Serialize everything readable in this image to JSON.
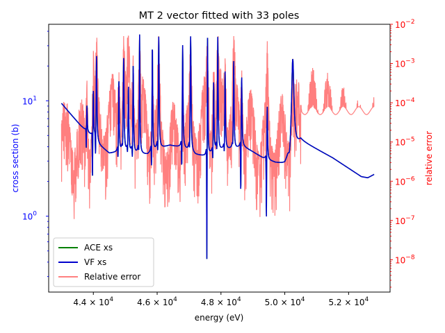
{
  "chart_data": {
    "type": "line",
    "title": "MT 2 vector fitted with 33 poles",
    "xlabel": "energy (eV)",
    "ylabel_left": "cross section (b)",
    "ylabel_right": "relative error",
    "xlim": [
      42600,
      53300
    ],
    "ylim_left": [
      0.22,
      46
    ],
    "ylim_right": [
      1.5e-09,
      0.01
    ],
    "yscale_left": "log",
    "yscale_right": "log",
    "grid": false,
    "legend_position": "lower-left",
    "x_ticks": [
      {
        "value": 44000,
        "mantissa": "4.4",
        "exp": "4"
      },
      {
        "value": 46000,
        "mantissa": "4.6",
        "exp": "4"
      },
      {
        "value": 48000,
        "mantissa": "4.8",
        "exp": "4"
      },
      {
        "value": 50000,
        "mantissa": "5.0",
        "exp": "4"
      },
      {
        "value": 52000,
        "mantissa": "5.2",
        "exp": "4"
      }
    ],
    "y_left_ticks": [
      {
        "value": 1,
        "label": "10",
        "exp": "0"
      },
      {
        "value": 10,
        "label": "10",
        "exp": "1"
      }
    ],
    "y_right_ticks": [
      {
        "value": 1e-08,
        "label": "10",
        "exp": "−8"
      },
      {
        "value": 1e-07,
        "label": "10",
        "exp": "−7"
      },
      {
        "value": 1e-06,
        "label": "10",
        "exp": "−6"
      },
      {
        "value": 1e-05,
        "label": "10",
        "exp": "−5"
      },
      {
        "value": 0.0001,
        "label": "10",
        "exp": "−4"
      },
      {
        "value": 0.001,
        "label": "10",
        "exp": "−3"
      },
      {
        "value": 0.01,
        "label": "10",
        "exp": "−2"
      }
    ],
    "colors": {
      "ace": "#008000",
      "vf": "#0000cc",
      "error": "#ff7f7f",
      "right_axis": "#ff0000",
      "left_axis": "#0000ff"
    },
    "baseline": [
      [
        43000,
        9.5
      ],
      [
        43300,
        7.6
      ],
      [
        43600,
        6.1
      ],
      [
        43900,
        5.1
      ],
      [
        44200,
        4.1
      ],
      [
        44500,
        3.5
      ],
      [
        44900,
        3.6
      ],
      [
        45300,
        3.5
      ],
      [
        45700,
        3.4
      ],
      [
        46000,
        3.8
      ],
      [
        46400,
        4.1
      ],
      [
        46800,
        3.9
      ],
      [
        47200,
        3.4
      ],
      [
        47500,
        3.3
      ],
      [
        47800,
        3.6
      ],
      [
        48100,
        3.8
      ],
      [
        48400,
        3.8
      ],
      [
        48700,
        4.0
      ],
      [
        49000,
        3.6
      ],
      [
        49300,
        3.2
      ],
      [
        49700,
        2.9
      ],
      [
        50000,
        2.8
      ],
      [
        50500,
        4.5
      ],
      [
        51000,
        3.8
      ],
      [
        51500,
        3.2
      ],
      [
        52000,
        2.6
      ],
      [
        52400,
        2.2
      ],
      [
        52600,
        2.15
      ],
      [
        52800,
        2.3
      ]
    ],
    "resonances": [
      {
        "e0": 43800,
        "hw": 10,
        "peak": 9.0,
        "dip": 3.5
      },
      {
        "e0": 44000,
        "hw": 12,
        "peak": 12.0,
        "dip": 1.8
      },
      {
        "e0": 44100,
        "hw": 14,
        "peak": 24.0,
        "dip": 2.5
      },
      {
        "e0": 44800,
        "hw": 12,
        "peak": 15.0,
        "dip": 2.5
      },
      {
        "e0": 44950,
        "hw": 15,
        "peak": 23.0,
        "dip": 3.0
      },
      {
        "e0": 45100,
        "hw": 13,
        "peak": 13.0,
        "dip": 2.8
      },
      {
        "e0": 45250,
        "hw": 12,
        "peak": 20.0,
        "dip": 2.4
      },
      {
        "e0": 45450,
        "hw": 12,
        "peak": 37.0,
        "dip": 2.5
      },
      {
        "e0": 45850,
        "hw": 12,
        "peak": 30.0,
        "dip": 1.9
      },
      {
        "e0": 46050,
        "hw": 14,
        "peak": 36.0,
        "dip": 2.6
      },
      {
        "e0": 46800,
        "hw": 13,
        "peak": 30.0,
        "dip": 1.9
      },
      {
        "e0": 47050,
        "hw": 15,
        "peak": 36.0,
        "dip": 2.7
      },
      {
        "e0": 47580,
        "hw": 10,
        "peak": 36.0,
        "dip": 0.28
      },
      {
        "e0": 47770,
        "hw": 12,
        "peak": 14.0,
        "dip": 2.5
      },
      {
        "e0": 47900,
        "hw": 13,
        "peak": 35.0,
        "dip": 2.6
      },
      {
        "e0": 48130,
        "hw": 12,
        "peak": 18.0,
        "dip": 2.8
      },
      {
        "e0": 48400,
        "hw": 13,
        "peak": 22.0,
        "dip": 3.2
      },
      {
        "e0": 48650,
        "hw": 13,
        "peak": 16.0,
        "dip": 1.3
      },
      {
        "e0": 49450,
        "hw": 12,
        "peak": 9.0,
        "dip": 0.8
      },
      {
        "e0": 50250,
        "hw": 45,
        "peak": 23.0,
        "dip": 3.0
      }
    ],
    "series": [
      {
        "name": "ACE xs",
        "color": "#008000",
        "axis": "left"
      },
      {
        "name": "VF xs",
        "color": "#0000cc",
        "axis": "left"
      },
      {
        "name": "Relative error",
        "color": "#ff7f7f",
        "axis": "right"
      }
    ]
  }
}
